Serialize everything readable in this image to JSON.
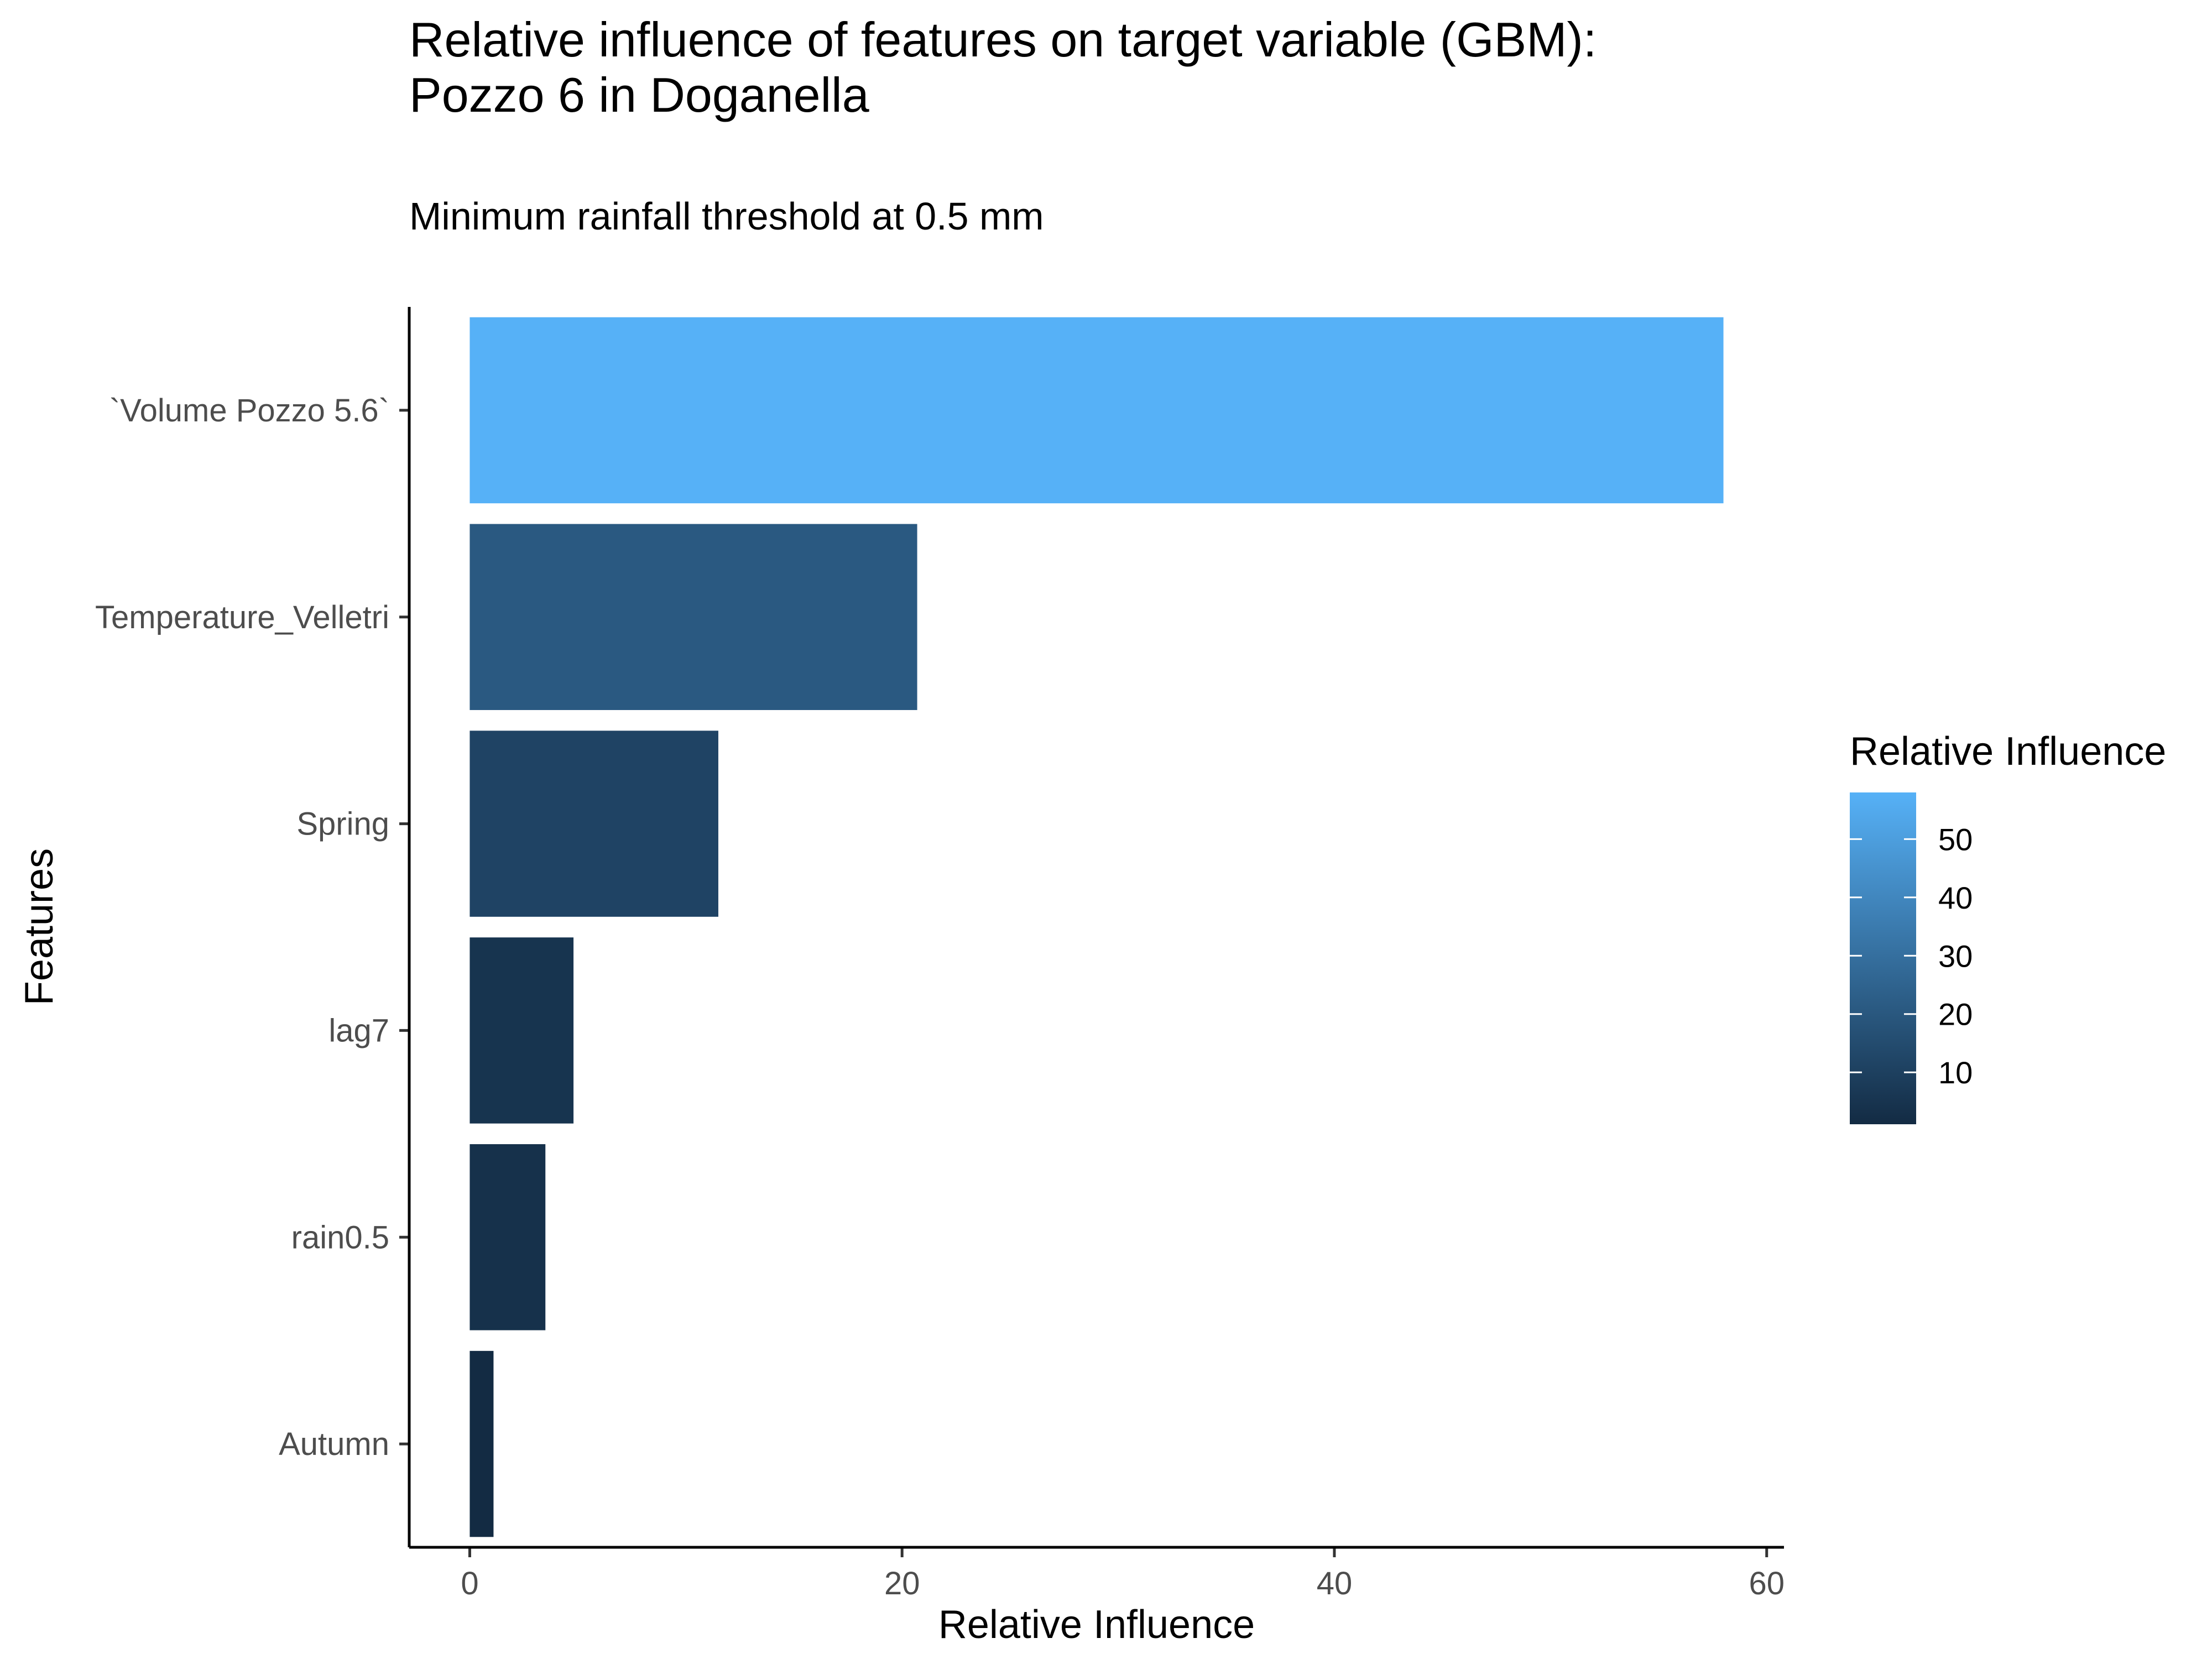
{
  "chart_data": {
    "type": "bar",
    "orientation": "horizontal",
    "title": "Relative influence of features on target variable (GBM):",
    "title_line2": "Pozzo 6 in Doganella",
    "subtitle": "Minimum rainfall threshold at 0.5 mm",
    "xlabel": "Relative Influence",
    "ylabel": "Features",
    "categories": [
      "`Volume Pozzo 5.6`",
      "Temperature_Velletri",
      "Spring",
      "lag7",
      "rain0.5",
      "Autumn"
    ],
    "values": [
      58.0,
      20.7,
      11.5,
      4.8,
      3.5,
      1.1
    ],
    "xlim": [
      -2.8,
      60.8
    ],
    "xticks": [
      0,
      20,
      40,
      60
    ],
    "grid": false,
    "legend": {
      "title": "Relative Influence",
      "placement": "right",
      "range": [
        1.1,
        58.0
      ],
      "ticks": [
        10,
        20,
        30,
        40,
        50
      ],
      "color_low": "#132B43",
      "color_high": "#56B1F7"
    }
  }
}
